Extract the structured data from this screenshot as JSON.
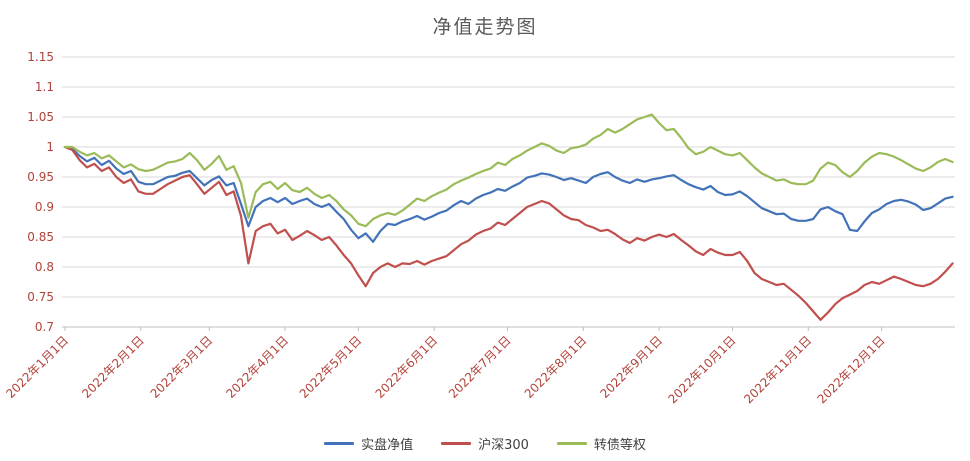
{
  "title": "净值走势图",
  "colors": {
    "title": "#595959",
    "axis_labels": "#b2423a",
    "gridline": "#d9d9d9",
    "axis_line": "#bfbfbf",
    "background": "#ffffff",
    "legend_text": "#404040"
  },
  "chart_data": {
    "type": "line",
    "title": "净值走势图",
    "xlabel": "",
    "ylabel": "",
    "grid": "horizontal",
    "legend_position": "bottom",
    "ylim": [
      0.7,
      1.15
    ],
    "xlim_days": [
      0,
      364
    ],
    "y_ticks": [
      0.7,
      0.75,
      0.8,
      0.85,
      0.9,
      0.95,
      1.0,
      1.05,
      1.1,
      1.15
    ],
    "y_tick_labels": [
      "0.7",
      "0.75",
      "0.8",
      "0.85",
      "0.9",
      "0.95",
      "1",
      "1.05",
      "1.1",
      "1.15"
    ],
    "x_tick_days": [
      0,
      31,
      59,
      90,
      120,
      151,
      181,
      212,
      243,
      273,
      304,
      334
    ],
    "x_tick_labels": [
      "2022年1月1日",
      "2022年2月1日",
      "2022年3月1日",
      "2022年4月1日",
      "2022年5月1日",
      "2022年6月1日",
      "2022年7月1日",
      "2022年8月1日",
      "2022年9月1日",
      "2022年10月1日",
      "2022年11月1日",
      "2022年12月1日"
    ],
    "x_days": [
      0,
      3,
      6,
      9,
      12,
      15,
      18,
      21,
      24,
      27,
      30,
      33,
      36,
      39,
      42,
      45,
      48,
      51,
      54,
      57,
      60,
      63,
      66,
      69,
      72,
      75,
      78,
      81,
      84,
      87,
      90,
      93,
      96,
      99,
      102,
      105,
      108,
      111,
      114,
      117,
      120,
      123,
      126,
      129,
      132,
      135,
      138,
      141,
      144,
      147,
      150,
      153,
      156,
      159,
      162,
      165,
      168,
      171,
      174,
      177,
      180,
      183,
      186,
      189,
      192,
      195,
      198,
      201,
      204,
      207,
      210,
      213,
      216,
      219,
      222,
      225,
      228,
      231,
      234,
      237,
      240,
      243,
      246,
      249,
      252,
      255,
      258,
      261,
      264,
      267,
      270,
      273,
      276,
      279,
      282,
      285,
      288,
      291,
      294,
      297,
      300,
      303,
      306,
      309,
      312,
      315,
      318,
      321,
      324,
      327,
      330,
      333,
      336,
      339,
      342,
      345,
      348,
      351,
      354,
      357,
      360,
      363
    ],
    "series": [
      {
        "name": "实盘净值",
        "color": "#4273b8",
        "values": [
          1.0,
          0.997,
          0.985,
          0.976,
          0.982,
          0.97,
          0.977,
          0.964,
          0.955,
          0.96,
          0.942,
          0.938,
          0.938,
          0.944,
          0.95,
          0.952,
          0.957,
          0.96,
          0.948,
          0.936,
          0.945,
          0.951,
          0.936,
          0.94,
          0.905,
          0.868,
          0.9,
          0.91,
          0.915,
          0.908,
          0.915,
          0.905,
          0.91,
          0.914,
          0.905,
          0.9,
          0.905,
          0.892,
          0.88,
          0.862,
          0.848,
          0.856,
          0.842,
          0.86,
          0.872,
          0.87,
          0.876,
          0.88,
          0.885,
          0.879,
          0.884,
          0.89,
          0.894,
          0.903,
          0.91,
          0.905,
          0.914,
          0.92,
          0.924,
          0.93,
          0.927,
          0.934,
          0.94,
          0.949,
          0.952,
          0.956,
          0.954,
          0.95,
          0.945,
          0.948,
          0.944,
          0.94,
          0.95,
          0.955,
          0.958,
          0.95,
          0.944,
          0.94,
          0.946,
          0.942,
          0.946,
          0.948,
          0.951,
          0.953,
          0.945,
          0.938,
          0.933,
          0.929,
          0.935,
          0.925,
          0.92,
          0.921,
          0.926,
          0.918,
          0.908,
          0.898,
          0.893,
          0.888,
          0.889,
          0.88,
          0.877,
          0.877,
          0.88,
          0.896,
          0.9,
          0.893,
          0.888,
          0.862,
          0.86,
          0.876,
          0.89,
          0.896,
          0.905,
          0.91,
          0.912,
          0.909,
          0.904,
          0.895,
          0.898,
          0.906,
          0.914,
          0.917
        ]
      },
      {
        "name": "沪深300",
        "color": "#c0504d",
        "values": [
          1.0,
          0.995,
          0.978,
          0.966,
          0.972,
          0.96,
          0.966,
          0.95,
          0.94,
          0.946,
          0.926,
          0.922,
          0.922,
          0.93,
          0.938,
          0.944,
          0.95,
          0.953,
          0.938,
          0.922,
          0.932,
          0.942,
          0.92,
          0.926,
          0.885,
          0.806,
          0.86,
          0.868,
          0.872,
          0.856,
          0.862,
          0.845,
          0.852,
          0.86,
          0.853,
          0.845,
          0.85,
          0.836,
          0.82,
          0.806,
          0.786,
          0.768,
          0.79,
          0.8,
          0.806,
          0.8,
          0.806,
          0.805,
          0.81,
          0.804,
          0.81,
          0.814,
          0.818,
          0.828,
          0.838,
          0.844,
          0.854,
          0.86,
          0.864,
          0.874,
          0.87,
          0.88,
          0.89,
          0.9,
          0.905,
          0.91,
          0.906,
          0.896,
          0.886,
          0.88,
          0.878,
          0.87,
          0.866,
          0.86,
          0.862,
          0.855,
          0.846,
          0.84,
          0.848,
          0.844,
          0.85,
          0.854,
          0.85,
          0.855,
          0.845,
          0.836,
          0.826,
          0.82,
          0.83,
          0.824,
          0.82,
          0.82,
          0.825,
          0.81,
          0.79,
          0.78,
          0.775,
          0.77,
          0.772,
          0.762,
          0.752,
          0.74,
          0.726,
          0.712,
          0.724,
          0.738,
          0.748,
          0.754,
          0.76,
          0.77,
          0.775,
          0.772,
          0.778,
          0.784,
          0.78,
          0.775,
          0.77,
          0.768,
          0.772,
          0.78,
          0.792,
          0.806
        ]
      },
      {
        "name": "转债等权",
        "color": "#9bbb59",
        "values": [
          1.0,
          1.0,
          0.992,
          0.986,
          0.99,
          0.981,
          0.986,
          0.976,
          0.966,
          0.971,
          0.963,
          0.96,
          0.962,
          0.968,
          0.974,
          0.976,
          0.98,
          0.99,
          0.978,
          0.962,
          0.972,
          0.985,
          0.962,
          0.968,
          0.94,
          0.882,
          0.925,
          0.938,
          0.942,
          0.93,
          0.94,
          0.928,
          0.925,
          0.932,
          0.922,
          0.915,
          0.92,
          0.91,
          0.896,
          0.886,
          0.872,
          0.868,
          0.88,
          0.886,
          0.89,
          0.887,
          0.894,
          0.904,
          0.914,
          0.91,
          0.918,
          0.924,
          0.929,
          0.938,
          0.944,
          0.949,
          0.955,
          0.96,
          0.964,
          0.974,
          0.97,
          0.98,
          0.986,
          0.994,
          1.0,
          1.006,
          1.002,
          0.994,
          0.99,
          0.998,
          1.0,
          1.004,
          1.014,
          1.02,
          1.03,
          1.024,
          1.03,
          1.038,
          1.046,
          1.05,
          1.054,
          1.04,
          1.028,
          1.03,
          1.015,
          0.998,
          0.988,
          0.992,
          1.0,
          0.994,
          0.988,
          0.986,
          0.99,
          0.978,
          0.966,
          0.956,
          0.95,
          0.944,
          0.946,
          0.94,
          0.938,
          0.938,
          0.944,
          0.964,
          0.974,
          0.97,
          0.958,
          0.95,
          0.96,
          0.974,
          0.984,
          0.99,
          0.988,
          0.984,
          0.978,
          0.971,
          0.964,
          0.96,
          0.966,
          0.975,
          0.98,
          0.975
        ]
      }
    ]
  }
}
